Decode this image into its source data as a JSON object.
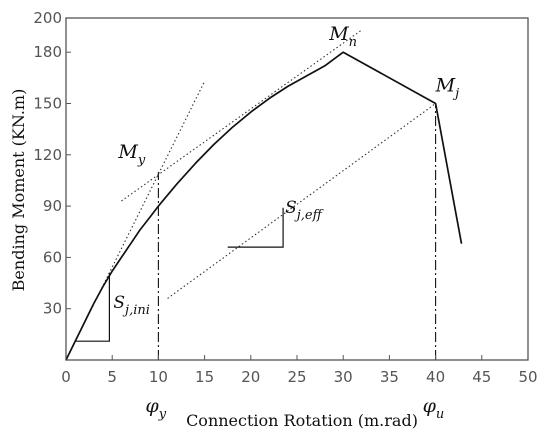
{
  "chart_data": {
    "type": "line",
    "xlabel": "Connection Rotation (m.rad)",
    "ylabel": "Bending Moment (KN.m)",
    "xlim": [
      0,
      50
    ],
    "ylim": [
      0,
      200
    ],
    "x_ticks": [
      0,
      5,
      10,
      15,
      20,
      25,
      30,
      35,
      40,
      45,
      50
    ],
    "y_ticks": [
      30,
      60,
      90,
      120,
      150,
      180,
      200
    ],
    "grid": false,
    "colors": {
      "curve": "#111111",
      "helper": "#333333",
      "axis": "#555555"
    },
    "series": [
      {
        "role": "moment-rotation curve",
        "style": "solid",
        "points": [
          [
            0,
            0
          ],
          [
            1,
            11
          ],
          [
            2,
            22
          ],
          [
            3,
            33
          ],
          [
            4,
            43
          ],
          [
            5,
            52
          ],
          [
            6,
            60
          ],
          [
            7,
            68
          ],
          [
            8,
            76
          ],
          [
            9,
            83
          ],
          [
            10,
            90
          ],
          [
            12,
            103
          ],
          [
            14,
            115
          ],
          [
            16,
            126
          ],
          [
            18,
            136
          ],
          [
            20,
            145
          ],
          [
            22,
            153
          ],
          [
            24,
            160
          ],
          [
            26,
            166
          ],
          [
            28,
            172
          ],
          [
            30,
            180
          ],
          [
            40,
            150
          ],
          [
            42.8,
            68
          ]
        ]
      },
      {
        "role": "initial stiffness line",
        "style": "dotted",
        "points": [
          [
            0,
            0
          ],
          [
            15,
            163
          ]
        ]
      },
      {
        "role": "secant line through yield",
        "style": "dotted",
        "points": [
          [
            6,
            93
          ],
          [
            32,
            193
          ]
        ]
      },
      {
        "role": "effective stiffness line",
        "style": "dotted",
        "points": [
          [
            11,
            36
          ],
          [
            40,
            150
          ]
        ]
      }
    ],
    "reference_lines": [
      {
        "role": "yield rotation",
        "style": "dash-dot",
        "x": 10,
        "y_from": 0,
        "y_to": 110
      },
      {
        "role": "ultimate rotation",
        "style": "dash-dot",
        "x": 40,
        "y_from": 0,
        "y_to": 150
      }
    ],
    "stiffness_triangles": [
      {
        "role": "initial stiffness",
        "x_from": 1,
        "x_to": 4.7,
        "y_from": 11,
        "y_to": 51
      },
      {
        "role": "effective stiffness",
        "x_from": 17.5,
        "x_to": 23.5,
        "y_from": 66,
        "y_to": 89
      }
    ],
    "annotations": [
      {
        "id": "My",
        "main": "M",
        "sub": "y",
        "x": 10,
        "y": 110
      },
      {
        "id": "Mn",
        "main": "M",
        "sub": "n",
        "x": 30,
        "y": 180
      },
      {
        "id": "Mj",
        "main": "M",
        "sub": "j",
        "x": 40,
        "y": 150
      },
      {
        "id": "Sjini",
        "main": "S",
        "sub": "j,ini",
        "x": 4.7,
        "y": 20
      },
      {
        "id": "Sjeff",
        "main": "S",
        "sub": "j,eff",
        "x": 23.5,
        "y": 72
      },
      {
        "id": "phiy",
        "main": "φ",
        "sub": "y",
        "x": 10,
        "y": 0
      },
      {
        "id": "phiu",
        "main": "φ",
        "sub": "u",
        "x": 40,
        "y": 0
      }
    ]
  }
}
